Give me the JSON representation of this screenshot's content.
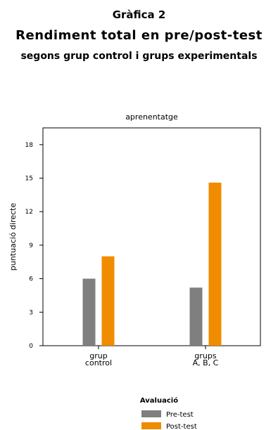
{
  "header": {
    "label": "Gràfica 2",
    "title": "Rendiment total en pre/post-test",
    "subtitle": "segons grup control i grups experimentals"
  },
  "chart_data": {
    "type": "bar",
    "title": "aprenentatge",
    "xlabel": "",
    "ylabel": "puntuació directe",
    "ylim": [
      0,
      19.5
    ],
    "yticks": [
      0,
      3,
      6,
      9,
      12,
      15,
      18
    ],
    "grid": false,
    "categories": [
      [
        "grup",
        "control"
      ],
      [
        "grups",
        "A, B, C"
      ]
    ],
    "series": [
      {
        "name": "Pre-test",
        "color": "#7f7f7f",
        "values": [
          6.0,
          5.2
        ]
      },
      {
        "name": "Post-test",
        "color": "#f08c00",
        "values": [
          8.0,
          14.6
        ]
      }
    ],
    "legend": {
      "title": "Avaluació",
      "position": "bottom"
    }
  }
}
